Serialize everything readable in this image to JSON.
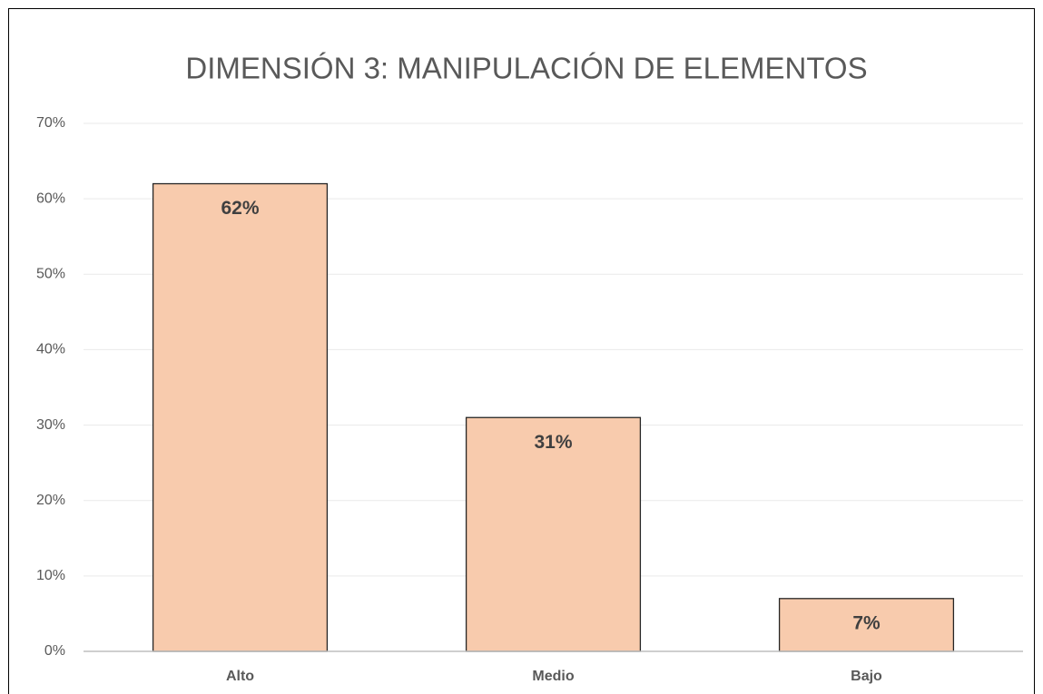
{
  "chart_data": {
    "type": "bar",
    "title": "DIMENSIÓN 3: MANIPULACIÓN DE ELEMENTOS",
    "categories": [
      "Alto",
      "Medio",
      "Bajo"
    ],
    "values": [
      62,
      31,
      7
    ],
    "value_labels": [
      "62%",
      "31%",
      "7%"
    ],
    "color": "#f8cbad",
    "ylim": [
      0,
      70
    ],
    "yticks": [
      {
        "value": 0,
        "label": "0%"
      },
      {
        "value": 10,
        "label": "10%"
      },
      {
        "value": 20,
        "label": "20%"
      },
      {
        "value": 30,
        "label": "30%"
      },
      {
        "value": 40,
        "label": "40%"
      },
      {
        "value": 50,
        "label": "50%"
      },
      {
        "value": 60,
        "label": "60%"
      },
      {
        "value": 70,
        "label": "70%"
      }
    ],
    "grid": true
  }
}
